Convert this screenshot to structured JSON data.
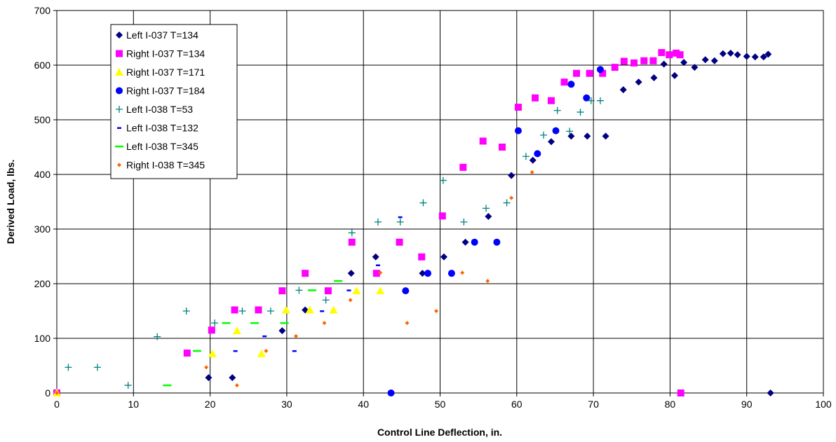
{
  "chart_data": {
    "type": "scatter",
    "title": "",
    "xlabel": "Control Line Deflection, in.",
    "ylabel": "Derived Load, lbs.",
    "xlim": [
      0,
      100
    ],
    "ylim": [
      0,
      700
    ],
    "xticks": [
      0,
      10,
      20,
      30,
      40,
      50,
      60,
      70,
      80,
      90,
      100
    ],
    "yticks": [
      0,
      100,
      200,
      300,
      400,
      500,
      600,
      700
    ],
    "grid": true,
    "legend_position": "top-left",
    "series": [
      {
        "name": "Left I-037 T=134",
        "marker": "diamond",
        "color": "#000080",
        "points": [
          [
            0,
            0
          ],
          [
            19.8,
            28
          ],
          [
            22.9,
            28
          ],
          [
            29.4,
            114
          ],
          [
            32.4,
            152
          ],
          [
            38.4,
            219
          ],
          [
            41.6,
            249
          ],
          [
            47.7,
            219
          ],
          [
            50.5,
            249
          ],
          [
            53.3,
            276
          ],
          [
            56.3,
            323
          ],
          [
            59.3,
            398
          ],
          [
            62.1,
            426
          ],
          [
            64.5,
            460
          ],
          [
            67.1,
            470
          ],
          [
            69.2,
            470
          ],
          [
            71.6,
            470
          ],
          [
            73.9,
            555
          ],
          [
            75.9,
            569
          ],
          [
            77.9,
            577
          ],
          [
            79.2,
            602
          ],
          [
            80.6,
            581
          ],
          [
            81.8,
            605
          ],
          [
            83.2,
            596
          ],
          [
            84.6,
            610
          ],
          [
            85.8,
            608
          ],
          [
            86.9,
            621
          ],
          [
            87.9,
            622
          ],
          [
            88.8,
            619
          ],
          [
            90,
            616
          ],
          [
            91.1,
            615
          ],
          [
            92.2,
            615
          ],
          [
            92.8,
            620
          ],
          [
            93.1,
            0
          ]
        ]
      },
      {
        "name": "Right I-037 T=134",
        "marker": "square",
        "color": "#ff00ff",
        "points": [
          [
            0,
            0
          ],
          [
            17,
            73
          ],
          [
            20.2,
            115
          ],
          [
            23.2,
            152
          ],
          [
            26.3,
            152
          ],
          [
            29.4,
            187
          ],
          [
            32.4,
            219
          ],
          [
            35.4,
            187
          ],
          [
            38.5,
            276
          ],
          [
            41.7,
            219
          ],
          [
            44.7,
            276
          ],
          [
            47.6,
            249
          ],
          [
            50.3,
            324
          ],
          [
            53,
            413
          ],
          [
            55.6,
            461
          ],
          [
            58.1,
            450
          ],
          [
            60.2,
            523
          ],
          [
            62.4,
            540
          ],
          [
            64.5,
            535
          ],
          [
            66.2,
            569
          ],
          [
            67.8,
            585
          ],
          [
            69.5,
            585
          ],
          [
            71.2,
            585
          ],
          [
            72.8,
            596
          ],
          [
            74,
            607
          ],
          [
            75.3,
            604
          ],
          [
            76.6,
            608
          ],
          [
            77.8,
            608
          ],
          [
            78.9,
            623
          ],
          [
            79.9,
            619
          ],
          [
            80.8,
            622
          ],
          [
            81.3,
            619
          ],
          [
            81.4,
            0
          ]
        ]
      },
      {
        "name": "Right I-037 T=171",
        "marker": "triangle",
        "color": "#ffff00",
        "points": [
          [
            0,
            0
          ],
          [
            20.3,
            72
          ],
          [
            23.5,
            114
          ],
          [
            26.7,
            72
          ],
          [
            29.9,
            152
          ],
          [
            33,
            152
          ],
          [
            36.1,
            152
          ],
          [
            39.1,
            187
          ],
          [
            42.2,
            187
          ]
        ]
      },
      {
        "name": "Right I-037 T=184",
        "marker": "circle",
        "color": "#0000ff",
        "points": [
          [
            43.6,
            0
          ],
          [
            45.5,
            187
          ],
          [
            48.4,
            219
          ],
          [
            51.5,
            219
          ],
          [
            54.5,
            276
          ],
          [
            57.4,
            276
          ],
          [
            60.2,
            480
          ],
          [
            62.7,
            438
          ],
          [
            65.1,
            480
          ],
          [
            67.1,
            565
          ],
          [
            69.1,
            540
          ],
          [
            70.9,
            592
          ]
        ]
      },
      {
        "name": "Left I-038 T=53",
        "marker": "plus",
        "color": "#008080",
        "points": [
          [
            1.5,
            47
          ],
          [
            5.3,
            47
          ],
          [
            9.3,
            14
          ],
          [
            13.1,
            103
          ],
          [
            16.9,
            150
          ],
          [
            20.6,
            128
          ],
          [
            24.2,
            150
          ],
          [
            27.9,
            150
          ],
          [
            31.6,
            188
          ],
          [
            35.1,
            170
          ],
          [
            38.5,
            293
          ],
          [
            41.9,
            313
          ],
          [
            44.8,
            313
          ],
          [
            47.8,
            348
          ],
          [
            50.4,
            389
          ],
          [
            53.1,
            313
          ],
          [
            56,
            338
          ],
          [
            58.7,
            348
          ],
          [
            61.2,
            433
          ],
          [
            63.5,
            472
          ],
          [
            65.3,
            517
          ],
          [
            66.9,
            479
          ],
          [
            68.3,
            514
          ],
          [
            69.7,
            535
          ],
          [
            70.9,
            535
          ]
        ]
      },
      {
        "name": "Left I-038 T=132",
        "marker": "dash",
        "color": "#0000ff",
        "points": [
          [
            23.3,
            77
          ],
          [
            27.1,
            104
          ],
          [
            31,
            77
          ],
          [
            34.6,
            150
          ],
          [
            38.1,
            188
          ],
          [
            41.9,
            234
          ],
          [
            44.8,
            322
          ]
        ]
      },
      {
        "name": "Left I-038 T=345",
        "marker": "dash-wide",
        "color": "#00ff00",
        "points": [
          [
            14.4,
            14
          ],
          [
            18.3,
            77
          ],
          [
            22.1,
            128
          ],
          [
            25.8,
            128
          ],
          [
            29.7,
            128
          ],
          [
            33.3,
            188
          ],
          [
            36.7,
            205
          ]
        ]
      },
      {
        "name": "Right I-038 T=345",
        "marker": "small-diamond",
        "color": "#ff6600",
        "points": [
          [
            0,
            0
          ],
          [
            19.5,
            47
          ],
          [
            23.5,
            14
          ],
          [
            27.3,
            77
          ],
          [
            31.2,
            104
          ],
          [
            34.9,
            128
          ],
          [
            38.3,
            170
          ],
          [
            42.2,
            220
          ],
          [
            45.7,
            128
          ],
          [
            49.5,
            150
          ],
          [
            52.9,
            220
          ],
          [
            56.2,
            205
          ],
          [
            59.3,
            357
          ],
          [
            62,
            404
          ]
        ]
      }
    ]
  }
}
